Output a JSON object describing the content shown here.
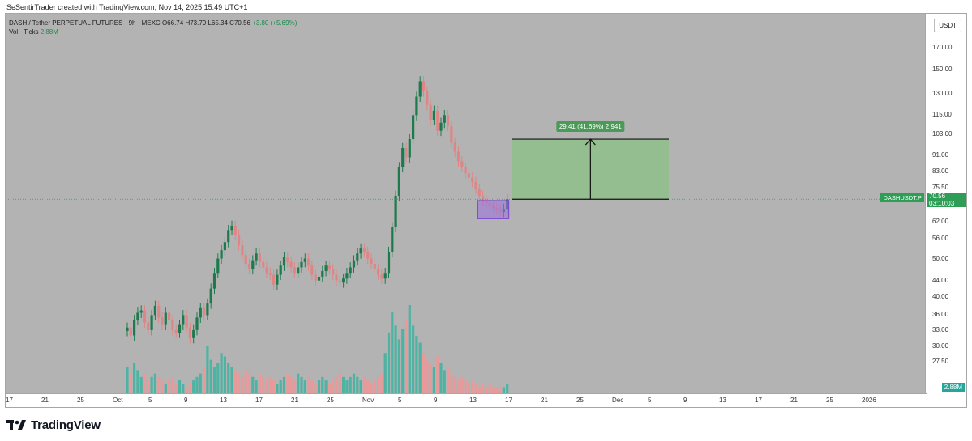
{
  "credit": "SeSentirTrader created with TradingView.com, Nov 14, 2025 15:49 UTC+1",
  "legend": {
    "title": "DASH / Tether PERPETUAL FUTURES · 9h · MEXC",
    "open": "O66.74",
    "high": "H73.79",
    "low": "L65.34",
    "close": "C70.56",
    "change": "+3.80 (+5.69%)",
    "vol_label": "Vol · Ticks",
    "vol_value": "2.88M"
  },
  "currency_button": "USDT",
  "price_axis": {
    "ticks": [
      "170.00",
      "150.00",
      "130.00",
      "115.00",
      "103.00",
      "91.00",
      "83.00",
      "75.50",
      "62.00",
      "56.00",
      "50.00",
      "44.00",
      "40.00",
      "36.00",
      "33.00",
      "30.00",
      "27.50"
    ]
  },
  "time_axis": {
    "ticks": [
      "17",
      "21",
      "25",
      "Oct",
      "5",
      "9",
      "13",
      "17",
      "21",
      "25",
      "Nov",
      "5",
      "9",
      "13",
      "17",
      "21",
      "25",
      "Dec",
      "5",
      "9",
      "13",
      "17",
      "21",
      "25",
      "2026"
    ]
  },
  "current_price": {
    "symbol": "DASHUSDT.P",
    "price": "70.56",
    "countdown": "03:10:03"
  },
  "volume_tag": "2.88M",
  "measure_label": "29.41 (41.69%) 2,941",
  "colors": {
    "up": "#1e7a4e",
    "down": "#e08585",
    "vol_up": "#4fb3a3",
    "vol_down": "#e89a9a",
    "panel": "#b3b3b3",
    "measure_fill": "#8fbf8a",
    "highlight": "#9b6fe0"
  },
  "brand": "TradingView",
  "chart_data": {
    "type": "candlestick",
    "title": "DASH / Tether PERPETUAL FUTURES · 9h · MEXC",
    "ohlc_last": {
      "open": 66.74,
      "high": 73.79,
      "low": 65.34,
      "close": 70.56
    },
    "closes": [
      33.5,
      32.0,
      35.0,
      36.5,
      37.0,
      34.5,
      33.0,
      36.0,
      38.0,
      35.5,
      34.0,
      36.5,
      35.0,
      33.0,
      32.5,
      34.0,
      36.0,
      33.5,
      31.5,
      33.0,
      35.5,
      37.5,
      36.0,
      38.5,
      42.0,
      46.0,
      50.0,
      52.5,
      55.0,
      59.0,
      60.5,
      57.5,
      54.0,
      51.0,
      48.5,
      47.0,
      49.5,
      51.5,
      49.0,
      47.5,
      46.0,
      45.5,
      43.0,
      45.5,
      48.0,
      50.5,
      49.0,
      47.5,
      46.0,
      47.5,
      49.0,
      50.0,
      48.0,
      45.5,
      44.0,
      45.0,
      46.5,
      48.0,
      47.0,
      45.5,
      44.0,
      43.5,
      44.5,
      46.0,
      47.5,
      49.5,
      51.5,
      53.0,
      52.0,
      50.0,
      48.5,
      47.0,
      45.5,
      44.5,
      46.0,
      52.0,
      60.0,
      72.0,
      85.0,
      95.0,
      90.0,
      100.0,
      115.0,
      128.0,
      140.0,
      132.0,
      122.0,
      112.0,
      118.0,
      105.0,
      110.0,
      115.0,
      108.0,
      98.0,
      93.0,
      88.0,
      85.0,
      82.0,
      80.0,
      78.0,
      75.0,
      72.0,
      70.0,
      69.0,
      68.0,
      67.0,
      66.5,
      65.5,
      66.74,
      70.56
    ],
    "volumes": [
      0.8,
      0.6,
      0.9,
      0.7,
      0.5,
      0.6,
      0.4,
      0.5,
      0.6,
      0.5,
      0.4,
      0.3,
      0.4,
      0.5,
      0.3,
      0.4,
      0.3,
      0.2,
      0.3,
      0.4,
      0.5,
      0.6,
      0.8,
      1.4,
      1.0,
      0.8,
      0.9,
      1.2,
      1.1,
      0.9,
      0.8,
      0.7,
      0.6,
      0.5,
      0.7,
      0.6,
      0.5,
      0.4,
      0.6,
      0.5,
      0.4,
      0.5,
      0.4,
      0.3,
      0.4,
      0.5,
      0.6,
      0.5,
      0.4,
      0.6,
      0.5,
      0.4,
      0.5,
      0.4,
      0.3,
      0.4,
      0.5,
      0.4,
      0.3,
      0.4,
      0.5,
      0.6,
      0.5,
      0.4,
      0.5,
      0.6,
      0.5,
      0.4,
      0.5,
      0.4,
      0.3,
      0.4,
      0.5,
      0.6,
      1.2,
      1.8,
      2.4,
      2.0,
      1.6,
      1.9,
      2.2,
      2.6,
      2.0,
      1.7,
      1.5,
      1.2,
      1.0,
      0.9,
      0.8,
      1.1,
      0.9,
      0.7,
      0.8,
      0.6,
      0.5,
      0.4,
      0.5,
      0.4,
      0.3,
      0.4,
      0.3,
      0.2,
      0.3,
      0.2,
      0.3,
      0.2,
      0.2,
      0.2,
      0.2,
      0.3
    ],
    "measure": {
      "from": 70.56,
      "to": 100.0,
      "change": 29.41,
      "change_pct": 41.69,
      "ticks": 2941
    },
    "y_scale": "log",
    "ylim": [
      25.0,
      180.0
    ]
  }
}
